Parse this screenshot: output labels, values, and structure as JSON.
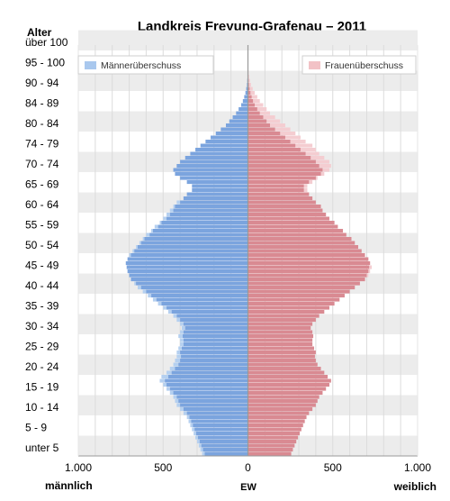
{
  "chart_data": {
    "type": "bar",
    "subtype": "population-pyramid",
    "title": "Landkreis Freyung-Grafenau – 2011",
    "y_axis_title": "Alter",
    "x_label_left": "männlich",
    "x_label_center": "EW",
    "x_label_right": "weiblich",
    "x_ticks": [
      "1.000",
      "500",
      "0",
      "500",
      "1.000"
    ],
    "xlim": [
      -1000,
      1000
    ],
    "age_range": [
      0,
      100
    ],
    "y_tick_labels": [
      {
        "age": 102,
        "label": "über 100"
      },
      {
        "age": 97,
        "label": "95 - 100"
      },
      {
        "age": 92,
        "label": "90 - 94"
      },
      {
        "age": 87,
        "label": "84 - 89"
      },
      {
        "age": 82,
        "label": "80 - 84"
      },
      {
        "age": 77,
        "label": "74 - 79"
      },
      {
        "age": 72,
        "label": "70 - 74"
      },
      {
        "age": 67,
        "label": "65 - 69"
      },
      {
        "age": 62,
        "label": "60 - 64"
      },
      {
        "age": 57,
        "label": "55 - 59"
      },
      {
        "age": 52,
        "label": "50 - 54"
      },
      {
        "age": 47,
        "label": "45 - 49"
      },
      {
        "age": 42,
        "label": "40 - 44"
      },
      {
        "age": 37,
        "label": "35 - 39"
      },
      {
        "age": 32,
        "label": "30 - 34"
      },
      {
        "age": 27,
        "label": "25 - 29"
      },
      {
        "age": 22,
        "label": "20 - 24"
      },
      {
        "age": 17,
        "label": "15 - 19"
      },
      {
        "age": 12,
        "label": "10 - 14"
      },
      {
        "age": 7,
        "label": "5 - 9"
      },
      {
        "age": 2,
        "label": "unter 5"
      }
    ],
    "legend": [
      {
        "name": "Männerüberschuss",
        "color": "#a9c8ee"
      },
      {
        "name": "Frauenüberschuss",
        "color": "#f2c2c6"
      }
    ],
    "colors": {
      "male": "#7ba4de",
      "female": "#d98a92",
      "male_surplus": "#b5d0f0",
      "female_surplus": "#f4cdd1",
      "band": "#ececec",
      "grid": "#dcdcdc",
      "axis": "#9a9a9a"
    },
    "series": [
      {
        "name": "männlich",
        "values": [
          270,
          280,
          290,
          300,
          310,
          320,
          330,
          340,
          350,
          360,
          380,
          400,
          420,
          430,
          440,
          460,
          480,
          500,
          520,
          510,
          480,
          460,
          440,
          430,
          420,
          420,
          410,
          400,
          400,
          410,
          400,
          390,
          400,
          420,
          440,
          470,
          500,
          530,
          560,
          590,
          620,
          650,
          670,
          690,
          700,
          710,
          715,
          720,
          710,
          700,
          680,
          660,
          640,
          620,
          600,
          570,
          550,
          520,
          500,
          480,
          460,
          440,
          420,
          380,
          360,
          330,
          330,
          360,
          400,
          430,
          440,
          420,
          400,
          370,
          340,
          310,
          280,
          250,
          220,
          190,
          160,
          130,
          110,
          90,
          70,
          55,
          40,
          30,
          22,
          15,
          10,
          6,
          4,
          2,
          1,
          0,
          0,
          0,
          0,
          0
        ]
      },
      {
        "name": "weiblich",
        "values": [
          255,
          265,
          275,
          285,
          295,
          305,
          315,
          325,
          335,
          345,
          360,
          380,
          400,
          410,
          420,
          440,
          460,
          480,
          490,
          470,
          450,
          430,
          410,
          400,
          395,
          400,
          390,
          380,
          380,
          385,
          380,
          370,
          380,
          400,
          420,
          450,
          480,
          510,
          540,
          570,
          600,
          630,
          660,
          690,
          710,
          720,
          730,
          720,
          710,
          690,
          670,
          650,
          630,
          610,
          580,
          560,
          530,
          510,
          480,
          460,
          440,
          430,
          400,
          380,
          360,
          350,
          350,
          380,
          410,
          450,
          480,
          490,
          480,
          450,
          420,
          400,
          380,
          340,
          310,
          280,
          250,
          220,
          190,
          160,
          130,
          110,
          90,
          70,
          55,
          40,
          28,
          18,
          12,
          7,
          4,
          2,
          1,
          1,
          0,
          0
        ]
      }
    ]
  }
}
